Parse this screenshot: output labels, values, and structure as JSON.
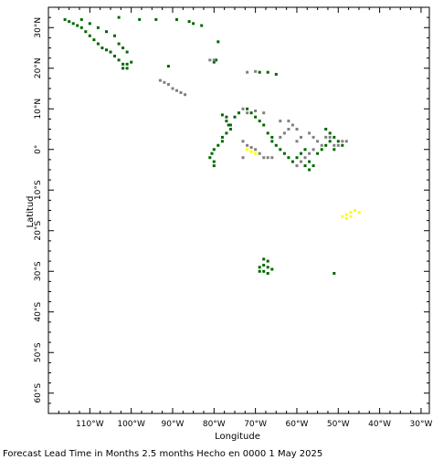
{
  "map": {
    "x_axis_title": "Longitude",
    "y_axis_title": "Latitud",
    "caption": "Forecast Lead Time in Months 2.5 months Hecho en 0000 1 May 2025",
    "lon_range": [
      -120,
      -28
    ],
    "lat_range": [
      -65,
      35
    ],
    "x_tick_labels": [
      {
        "lon": -110,
        "label": "110°W"
      },
      {
        "lon": -100,
        "label": "100°W"
      },
      {
        "lon": -90,
        "label": "90°W"
      },
      {
        "lon": -80,
        "label": "80°W"
      },
      {
        "lon": -70,
        "label": "70°W"
      },
      {
        "lon": -60,
        "label": "60°W"
      },
      {
        "lon": -50,
        "label": "50°W"
      },
      {
        "lon": -40,
        "label": "40°W"
      },
      {
        "lon": -30,
        "label": "30°W"
      }
    ],
    "y_tick_labels": [
      {
        "lat": 30,
        "label": "30°N"
      },
      {
        "lat": 20,
        "label": "20°N"
      },
      {
        "lat": 10,
        "label": "10°N"
      },
      {
        "lat": 0,
        "label": "0°"
      },
      {
        "lat": -10,
        "label": "10°S"
      },
      {
        "lat": -20,
        "label": "20°S"
      },
      {
        "lat": -30,
        "label": "30°S"
      },
      {
        "lat": -40,
        "label": "40°S"
      },
      {
        "lat": -50,
        "label": "50°S"
      },
      {
        "lat": -60,
        "label": "60°S"
      }
    ],
    "colors": {
      "green": "#006600",
      "gray": "#808080",
      "yellow": "#ffff00",
      "frame": "#000000"
    },
    "clusters": [
      {
        "color": "green",
        "points": [
          [
            -116,
            32
          ],
          [
            -115,
            31.5
          ],
          [
            -114,
            31
          ],
          [
            -113,
            30.5
          ],
          [
            -112,
            30
          ],
          [
            -111,
            29
          ],
          [
            -110,
            28
          ],
          [
            -109,
            27
          ],
          [
            -108,
            26
          ],
          [
            -107,
            25
          ],
          [
            -106,
            24.5
          ],
          [
            -105,
            24
          ],
          [
            -104,
            23
          ],
          [
            -103,
            22
          ],
          [
            -102,
            21
          ],
          [
            -101,
            20
          ],
          [
            -112,
            32
          ],
          [
            -110,
            31
          ],
          [
            -108,
            30
          ],
          [
            -106,
            29
          ],
          [
            -104,
            28
          ],
          [
            -103,
            26
          ],
          [
            -102,
            25
          ],
          [
            -101,
            24
          ],
          [
            -102,
            20
          ],
          [
            -101,
            21
          ],
          [
            -100,
            21.5
          ],
          [
            -103,
            32.5
          ],
          [
            -98,
            32
          ],
          [
            -94,
            32
          ],
          [
            -89,
            32
          ],
          [
            -86,
            31.5
          ],
          [
            -85,
            31
          ],
          [
            -83,
            30.5
          ]
        ]
      },
      {
        "color": "green",
        "points": [
          [
            -79,
            26.5
          ],
          [
            -91,
            20.5
          ],
          [
            -80,
            21.5
          ],
          [
            -79.5,
            22
          ],
          [
            -69,
            19
          ],
          [
            -67,
            19
          ],
          [
            -65,
            18.5
          ]
        ]
      },
      {
        "color": "gray",
        "points": [
          [
            -81,
            22
          ],
          [
            -80,
            22
          ],
          [
            -72,
            19
          ],
          [
            -70,
            19.2
          ],
          [
            -93,
            17
          ],
          [
            -92,
            16.5
          ],
          [
            -91,
            16
          ],
          [
            -90,
            15
          ],
          [
            -89,
            14.5
          ],
          [
            -88,
            14
          ],
          [
            -87,
            13.5
          ]
        ]
      },
      {
        "color": "green",
        "points": [
          [
            -78,
            8.5
          ],
          [
            -77,
            8
          ],
          [
            -77,
            7
          ],
          [
            -76.5,
            6
          ],
          [
            -76,
            5
          ],
          [
            -77,
            4
          ],
          [
            -78,
            3
          ],
          [
            -78,
            2
          ],
          [
            -79,
            1
          ],
          [
            -80,
            0
          ],
          [
            -80.5,
            -1
          ],
          [
            -81,
            -2
          ],
          [
            -80,
            -3
          ],
          [
            -80,
            -4
          ],
          [
            -76,
            6
          ],
          [
            -75,
            8
          ],
          [
            -74,
            9
          ],
          [
            -72,
            10
          ],
          [
            -71,
            9
          ],
          [
            -70,
            8
          ],
          [
            -69,
            7
          ],
          [
            -68,
            6
          ],
          [
            -67,
            4
          ],
          [
            -66,
            3
          ],
          [
            -66,
            2
          ],
          [
            -65,
            1
          ],
          [
            -64,
            0
          ],
          [
            -63,
            -1
          ],
          [
            -62,
            -2
          ],
          [
            -61,
            -3
          ],
          [
            -60,
            -2
          ],
          [
            -59,
            -1
          ],
          [
            -58,
            0
          ],
          [
            -57,
            -3
          ],
          [
            -58,
            -4
          ],
          [
            -57,
            -5
          ],
          [
            -56,
            -4
          ],
          [
            -55,
            -1
          ],
          [
            -54,
            0
          ],
          [
            -53,
            1
          ],
          [
            -52,
            2
          ],
          [
            -51,
            3
          ],
          [
            -50,
            2
          ],
          [
            -49,
            1
          ],
          [
            -51,
            0
          ],
          [
            -52,
            4
          ],
          [
            -53,
            5
          ]
        ]
      },
      {
        "color": "gray",
        "points": [
          [
            -73,
            10
          ],
          [
            -72,
            9
          ],
          [
            -70,
            9.5
          ],
          [
            -68,
            9
          ],
          [
            -64,
            7
          ],
          [
            -62,
            7
          ],
          [
            -61,
            6
          ],
          [
            -60,
            5
          ],
          [
            -62,
            5
          ],
          [
            -63,
            4
          ],
          [
            -64,
            3
          ],
          [
            -60,
            2
          ],
          [
            -59,
            3
          ],
          [
            -57,
            4
          ],
          [
            -56,
            3
          ],
          [
            -55,
            2
          ],
          [
            -54,
            1
          ],
          [
            -56,
            0
          ],
          [
            -57,
            -1
          ],
          [
            -58,
            -2
          ],
          [
            -59,
            -3
          ],
          [
            -60,
            -4
          ],
          [
            -53,
            3
          ],
          [
            -52,
            3
          ],
          [
            -51,
            1
          ],
          [
            -50,
            1
          ],
          [
            -49,
            2
          ],
          [
            -48,
            2
          ],
          [
            -73,
            2
          ],
          [
            -72,
            1
          ],
          [
            -71,
            0.5
          ],
          [
            -70,
            0
          ],
          [
            -69,
            -1
          ],
          [
            -68,
            -2
          ],
          [
            -67,
            -2
          ],
          [
            -66,
            -2
          ],
          [
            -73,
            -2
          ]
        ]
      },
      {
        "color": "yellow",
        "points": [
          [
            -71,
            -0.5
          ],
          [
            -72,
            0
          ],
          [
            -70,
            -1
          ]
        ]
      },
      {
        "color": "yellow",
        "points": [
          [
            -49,
            -16.5
          ],
          [
            -48,
            -16
          ],
          [
            -47,
            -15.5
          ],
          [
            -46,
            -15
          ],
          [
            -45,
            -15.5
          ],
          [
            -48,
            -17
          ],
          [
            -47,
            -16.5
          ]
        ]
      },
      {
        "color": "green",
        "points": [
          [
            -68,
            -27
          ],
          [
            -67,
            -27.5
          ],
          [
            -68,
            -28.5
          ],
          [
            -67,
            -29
          ],
          [
            -68,
            -30
          ],
          [
            -67,
            -30.5
          ],
          [
            -69,
            -29
          ],
          [
            -69,
            -30
          ],
          [
            -66,
            -29.5
          ],
          [
            -51,
            -30.5
          ]
        ]
      }
    ]
  }
}
